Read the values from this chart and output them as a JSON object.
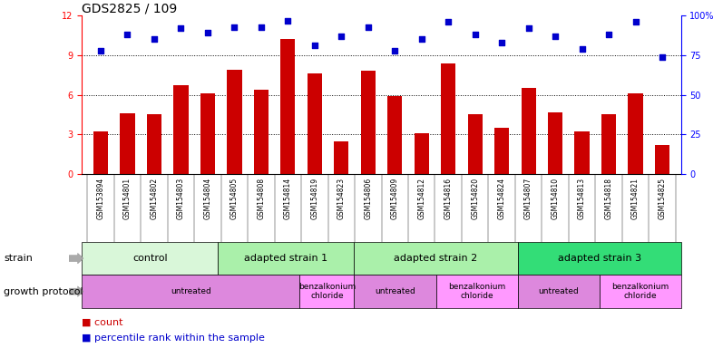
{
  "title": "GDS2825 / 109",
  "samples": [
    "GSM153894",
    "GSM154801",
    "GSM154802",
    "GSM154803",
    "GSM154804",
    "GSM154805",
    "GSM154808",
    "GSM154814",
    "GSM154819",
    "GSM154823",
    "GSM154806",
    "GSM154809",
    "GSM154812",
    "GSM154816",
    "GSM154820",
    "GSM154824",
    "GSM154807",
    "GSM154810",
    "GSM154813",
    "GSM154818",
    "GSM154821",
    "GSM154825"
  ],
  "counts": [
    3.2,
    4.6,
    4.5,
    6.7,
    6.1,
    7.9,
    6.4,
    10.2,
    7.6,
    2.5,
    7.8,
    5.9,
    3.1,
    8.4,
    4.5,
    3.5,
    6.5,
    4.7,
    3.2,
    4.5,
    6.1,
    2.2
  ],
  "percentiles": [
    78,
    88,
    85,
    92,
    89,
    93,
    93,
    97,
    81,
    87,
    93,
    78,
    85,
    96,
    88,
    83,
    92,
    87,
    79,
    88,
    96,
    74
  ],
  "bar_color": "#cc0000",
  "dot_color": "#0000cc",
  "ylim_left": [
    0,
    12
  ],
  "ylim_right": [
    0,
    100
  ],
  "yticks_left": [
    0,
    3,
    6,
    9,
    12
  ],
  "yticks_right": [
    0,
    25,
    50,
    75,
    100
  ],
  "ytick_labels_right": [
    "0",
    "25",
    "50",
    "75",
    "100%"
  ],
  "grid_values": [
    3,
    6,
    9
  ],
  "strain_groups": [
    {
      "label": "control",
      "start": 0,
      "end": 5,
      "color": "#d9f7d9"
    },
    {
      "label": "adapted strain 1",
      "start": 5,
      "end": 10,
      "color": "#aaf0aa"
    },
    {
      "label": "adapted strain 2",
      "start": 10,
      "end": 16,
      "color": "#aaf0aa"
    },
    {
      "label": "adapted strain 3",
      "start": 16,
      "end": 22,
      "color": "#33dd77"
    }
  ],
  "protocol_groups": [
    {
      "label": "untreated",
      "start": 0,
      "end": 8,
      "color": "#dd88dd"
    },
    {
      "label": "benzalkonium\nchloride",
      "start": 8,
      "end": 10,
      "color": "#ff99ff"
    },
    {
      "label": "untreated",
      "start": 10,
      "end": 13,
      "color": "#dd88dd"
    },
    {
      "label": "benzalkonium\nchloride",
      "start": 13,
      "end": 16,
      "color": "#ff99ff"
    },
    {
      "label": "untreated",
      "start": 16,
      "end": 19,
      "color": "#dd88dd"
    },
    {
      "label": "benzalkonium\nchloride",
      "start": 19,
      "end": 22,
      "color": "#ff99ff"
    }
  ],
  "legend_count_label": "count",
  "legend_pct_label": "percentile rank within the sample",
  "strain_label": "strain",
  "protocol_label": "growth protocol",
  "background_color": "#ffffff",
  "title_fontsize": 10,
  "tick_fontsize": 7,
  "label_fontsize": 8,
  "annotation_fontsize": 8,
  "xtick_fontsize": 5.5,
  "xtick_bg_color": "#cccccc"
}
